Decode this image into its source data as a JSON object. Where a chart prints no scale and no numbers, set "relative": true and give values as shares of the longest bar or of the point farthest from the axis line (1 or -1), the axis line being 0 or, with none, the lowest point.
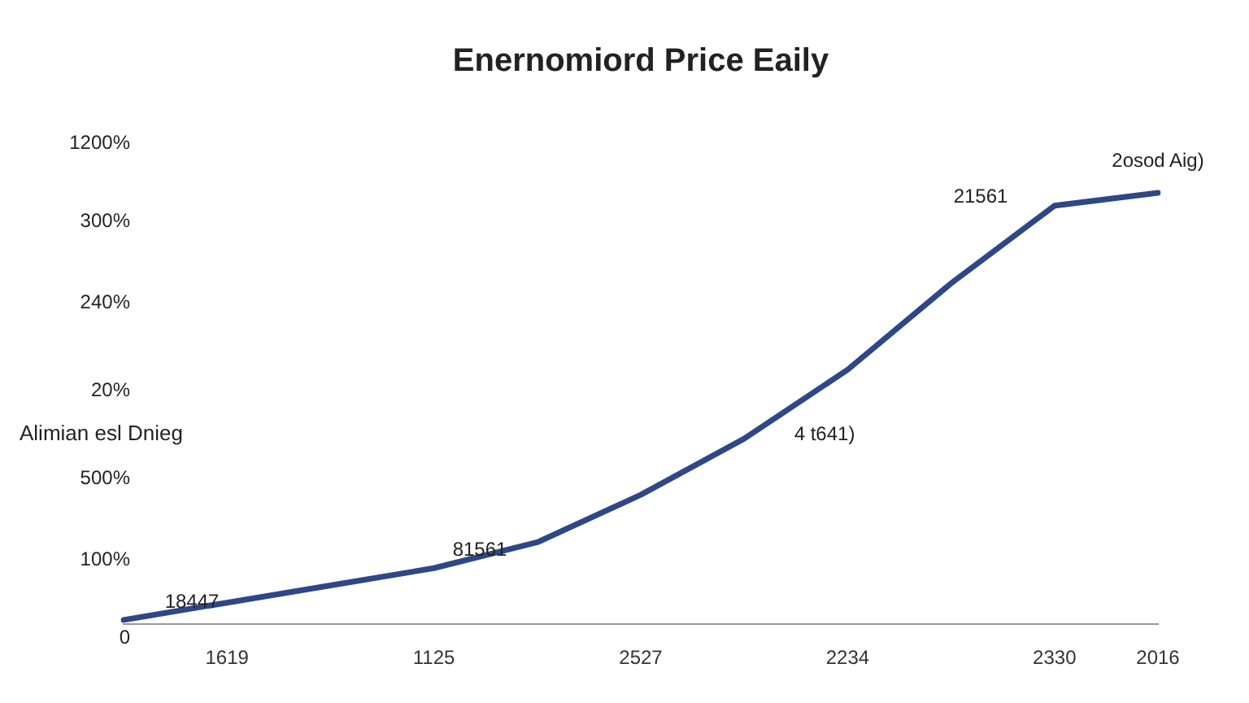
{
  "chart_data": {
    "type": "line",
    "title": "Enernomiord Price Eaily",
    "ylabel": "Alimian esl Dnieg",
    "relative": true,
    "categories": [
      null,
      "1619",
      null,
      "1125",
      null,
      "2527",
      null,
      "2234",
      null,
      "2330",
      "2016"
    ],
    "series": [
      {
        "color": "#2e4786",
        "values": [
          0.01,
          0.05,
          0.09,
          0.13,
          0.19,
          0.3,
          0.43,
          0.59,
          0.79,
          0.97,
          1.0
        ]
      }
    ],
    "annotations": [
      "1200%",
      "300%",
      "240%",
      "20%",
      "500%",
      "100%",
      "0",
      "18447",
      "81561",
      "4 t641)",
      "21561",
      "2osod Aig)"
    ],
    "grid": false,
    "legend": false,
    "marker": "none",
    "line_style": "solid"
  }
}
